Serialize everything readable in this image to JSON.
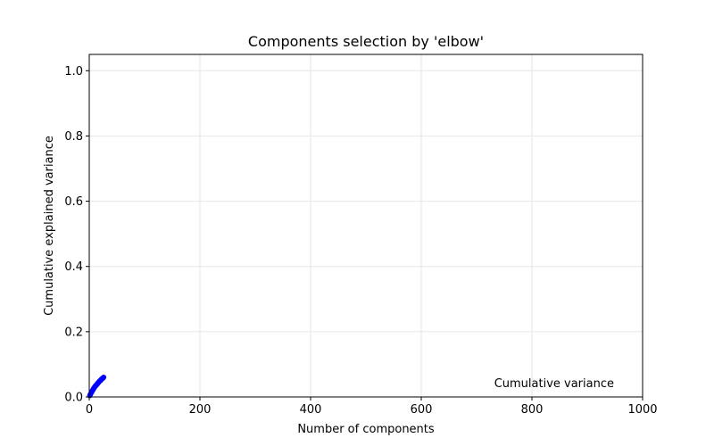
{
  "chart_data": {
    "type": "line",
    "title": "Components selection by 'elbow'",
    "xlabel": "Number of components",
    "ylabel": "Cumulative explained variance",
    "xlim": [
      0,
      1000
    ],
    "ylim": [
      0,
      1.05
    ],
    "xticks": [
      0,
      200,
      400,
      600,
      800,
      1000
    ],
    "yticks": [
      0.0,
      0.2,
      0.4,
      0.6,
      0.8,
      1.0
    ],
    "xtick_labels": [
      "0",
      "200",
      "400",
      "600",
      "800",
      "1000"
    ],
    "ytick_labels": [
      "0.0",
      "0.2",
      "0.4",
      "0.6",
      "0.8",
      "1.0"
    ],
    "grid": true,
    "legend_position": "lower-right",
    "series": [
      {
        "name": "Cumulative variance",
        "color": "#0000ff",
        "marker": "circle",
        "x": [
          1,
          2,
          3,
          4,
          5,
          6,
          7,
          8,
          9,
          10,
          11,
          12,
          13,
          14,
          15,
          16,
          17,
          18,
          19,
          20,
          21,
          22,
          23,
          24,
          25,
          26
        ],
        "y": [
          0.004,
          0.008,
          0.011,
          0.014,
          0.017,
          0.02,
          0.023,
          0.026,
          0.028,
          0.031,
          0.033,
          0.035,
          0.037,
          0.039,
          0.041,
          0.043,
          0.045,
          0.047,
          0.049,
          0.05,
          0.052,
          0.054,
          0.055,
          0.057,
          0.058,
          0.06
        ]
      }
    ]
  }
}
